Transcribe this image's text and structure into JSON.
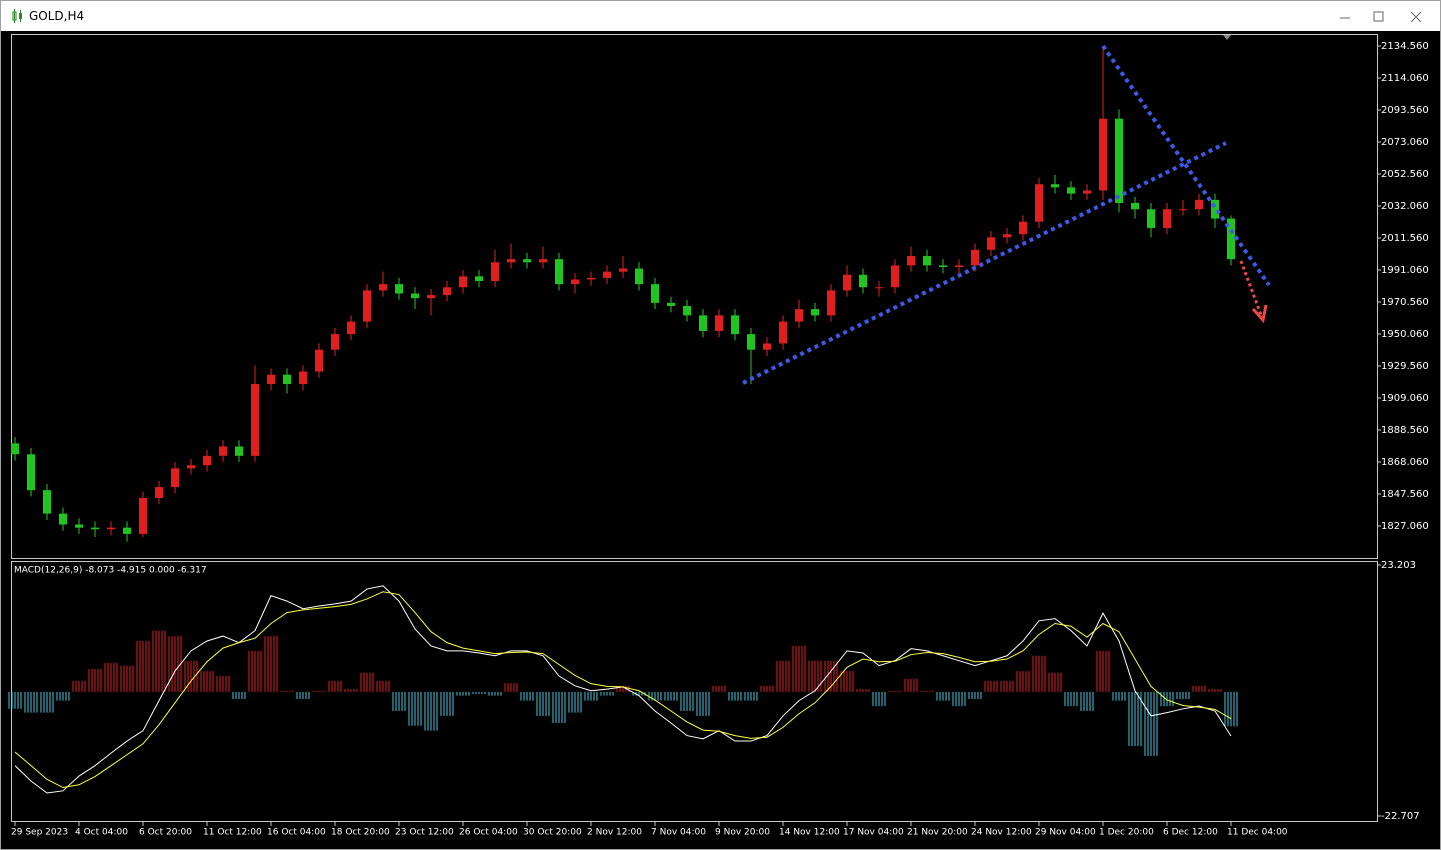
{
  "window": {
    "title": "GOLD,H4"
  },
  "chart_data": [
    {
      "type": "candlestick",
      "categories": [
        "29 Sep 2023",
        null,
        null,
        null,
        "4 Oct 04:00",
        null,
        null,
        null,
        "6 Oct 20:00",
        null,
        null,
        null,
        "11 Oct 12:00",
        null,
        null,
        null,
        "16 Oct 04:00",
        null,
        null,
        null,
        "18 Oct 20:00",
        null,
        null,
        null,
        "23 Oct 12:00",
        null,
        null,
        null,
        "26 Oct 04:00",
        null,
        null,
        null,
        "30 Oct 20:00",
        null,
        null,
        null,
        "2 Nov 12:00",
        null,
        null,
        null,
        "7 Nov 04:00",
        null,
        null,
        null,
        "9 Nov 20:00",
        null,
        null,
        null,
        "14 Nov 12:00",
        null,
        null,
        null,
        "17 Nov 04:00",
        null,
        null,
        null,
        "21 Nov 20:00",
        null,
        null,
        null,
        "24 Nov 12:00",
        null,
        null,
        null,
        "29 Nov 04:00",
        null,
        null,
        null,
        "1 Dec 20:00",
        null,
        null,
        null,
        "6 Dec 12:00",
        null,
        null,
        null,
        "11 Dec 04:00"
      ],
      "open": [
        1880,
        1873,
        1850,
        1835,
        1828,
        1826,
        1825,
        1826,
        1822,
        1845,
        1852,
        1864,
        1866,
        1872,
        1878,
        1872,
        1918,
        1924,
        1918,
        1926,
        1940,
        1950,
        1958,
        1978,
        1982,
        1976,
        1973,
        1975,
        1980,
        1987,
        1984,
        1996,
        1998,
        1996,
        1998,
        1982,
        1985,
        1986,
        1990,
        1992,
        1982,
        1970,
        1968,
        1962,
        1952,
        1962,
        1950,
        1940,
        1944,
        1958,
        1966,
        1962,
        1978,
        1988,
        1980,
        1980,
        1994,
        2000,
        1994,
        1993,
        1994,
        2004,
        2012,
        2014,
        2022,
        2046,
        2044,
        2040,
        2042,
        2088,
        2034,
        2030,
        2018,
        2030,
        2030,
        2036,
        2024
      ],
      "high": [
        1884,
        1877,
        1854,
        1839,
        1832,
        1830,
        1830,
        1830,
        1849,
        1856,
        1868,
        1870,
        1876,
        1882,
        1882,
        1930,
        1928,
        1928,
        1930,
        1944,
        1954,
        1962,
        1982,
        1990,
        1986,
        1980,
        1979,
        1984,
        1991,
        1991,
        2004,
        2008,
        2002,
        2006,
        2002,
        1989,
        1990,
        1994,
        2000,
        1996,
        1986,
        1974,
        1972,
        1966,
        1966,
        1966,
        1954,
        1948,
        1962,
        1972,
        1970,
        1982,
        1994,
        1992,
        1984,
        1998,
        2006,
        2004,
        1998,
        1998,
        2008,
        2016,
        2018,
        2026,
        2050,
        2052,
        2048,
        2046,
        2134.56,
        2094,
        2038,
        2034,
        2034,
        2036,
        2040,
        2040,
        2026
      ],
      "low": [
        1869,
        1846,
        1831,
        1824,
        1822,
        1820,
        1821,
        1817,
        1820,
        1841,
        1848,
        1860,
        1862,
        1868,
        1868,
        1868,
        1914,
        1912,
        1914,
        1922,
        1936,
        1946,
        1954,
        1974,
        1972,
        1966,
        1962,
        1971,
        1976,
        1980,
        1980,
        1992,
        1992,
        1992,
        1978,
        1976,
        1981,
        1982,
        1986,
        1978,
        1966,
        1964,
        1958,
        1948,
        1948,
        1946,
        1918,
        1936,
        1940,
        1954,
        1958,
        1958,
        1974,
        1976,
        1974,
        1976,
        1990,
        1990,
        1989,
        1989,
        1990,
        2000,
        2008,
        2010,
        2018,
        2040,
        2036,
        2036,
        2036,
        2028,
        2024,
        2012,
        2014,
        2026,
        2026,
        2018,
        1994
      ],
      "close": [
        1873,
        1850,
        1835,
        1828,
        1826,
        1825,
        1826,
        1822,
        1845,
        1852,
        1864,
        1866,
        1872,
        1878,
        1872,
        1918,
        1924,
        1918,
        1926,
        1940,
        1950,
        1958,
        1978,
        1982,
        1976,
        1973,
        1975,
        1980,
        1987,
        1984,
        1996,
        1998,
        1996,
        1998,
        1982,
        1985,
        1986,
        1990,
        1992,
        1982,
        1970,
        1968,
        1962,
        1952,
        1962,
        1950,
        1940,
        1944,
        1958,
        1966,
        1962,
        1978,
        1988,
        1980,
        1980,
        1994,
        2000,
        1994,
        1993,
        1994,
        2004,
        2012,
        2014,
        2022,
        2046,
        2044,
        2040,
        2042,
        2088,
        2034,
        2030,
        2018,
        2030,
        2030,
        2036,
        2024,
        1998
      ],
      "up_color": "#e02020",
      "down_color": "#22c422",
      "ylim": [
        1806.56,
        2142.25
      ],
      "yticks": [
        {
          "value": 2134.56,
          "label": "2134.560"
        },
        {
          "value": 2114.06,
          "label": "2114.060"
        },
        {
          "value": 2093.56,
          "label": "2093.560"
        },
        {
          "value": 2073.06,
          "label": "2073.060"
        },
        {
          "value": 2052.56,
          "label": "2052.560"
        },
        {
          "value": 2032.06,
          "label": "2032.060"
        },
        {
          "value": 2011.56,
          "label": "2011.560"
        },
        {
          "value": 1991.06,
          "label": "1991.060"
        },
        {
          "value": 1970.56,
          "label": "1970.560"
        },
        {
          "value": 1950.06,
          "label": "1950.060"
        },
        {
          "value": 1929.56,
          "label": "1929.560"
        },
        {
          "value": 1909.06,
          "label": "1909.060"
        },
        {
          "value": 1888.56,
          "label": "1888.560"
        },
        {
          "value": 1868.06,
          "label": "1868.060"
        },
        {
          "value": 1847.56,
          "label": "1847.560"
        },
        {
          "value": 1827.06,
          "label": "1827.060"
        }
      ]
    },
    {
      "type": "macd",
      "label": "MACD(12,26,9) -8.073 -4.915 0.000 -6.317",
      "histogram": {
        "positive_color": "#e02020",
        "negative_color": "#3ec8dc",
        "values": [
          -3.1,
          -3.8,
          -3.8,
          -1.6,
          2.0,
          4.2,
          5.3,
          4.8,
          9.3,
          11.2,
          10.2,
          5.7,
          3.8,
          2.9,
          -1.3,
          7.5,
          10.2,
          0.2,
          -1.3,
          0.2,
          2.0,
          0.5,
          3.5,
          2.0,
          -3.5,
          -6.2,
          -7.1,
          -4.4,
          -0.7,
          -0.4,
          -0.7,
          1.6,
          -1.6,
          -4.4,
          -5.7,
          -3.8,
          -1.6,
          -0.7,
          1.1,
          -0.7,
          -1.6,
          -1.6,
          -3.5,
          -4.4,
          1.1,
          -1.6,
          -1.6,
          1.1,
          5.7,
          8.4,
          5.7,
          5.7,
          3.8,
          0.5,
          -2.6,
          0.2,
          2.4,
          0.2,
          -1.6,
          -2.6,
          -1.3,
          2.0,
          2.0,
          3.8,
          6.6,
          3.5,
          -2.6,
          -3.5,
          7.5,
          -1.6,
          -9.9,
          -11.7,
          -2.6,
          -1.3,
          1.1,
          0.5,
          -6.317
        ]
      },
      "lines": [
        {
          "color": "#ffffff",
          "values": [
            -13.5,
            -16.3,
            -18.5,
            -18.1,
            -15.4,
            -13.5,
            -11.2,
            -9.0,
            -7.1,
            -1.6,
            3.8,
            7.5,
            9.3,
            10.2,
            9.0,
            11.2,
            17.6,
            16.6,
            15.2,
            15.7,
            16.1,
            16.6,
            18.8,
            19.4,
            16.6,
            11.5,
            8.4,
            7.5,
            7.5,
            7.1,
            6.6,
            7.5,
            7.5,
            6.6,
            2.9,
            1.1,
            0.2,
            0.5,
            0.9,
            -0.7,
            -3.5,
            -5.7,
            -8.0,
            -8.6,
            -7.1,
            -9.0,
            -9.0,
            -8.0,
            -4.4,
            -1.6,
            0.2,
            3.8,
            7.5,
            7.1,
            4.8,
            5.7,
            7.9,
            7.5,
            6.6,
            5.7,
            4.8,
            5.7,
            6.6,
            9.3,
            13.0,
            13.4,
            11.2,
            8.4,
            14.4,
            9.3,
            0.2,
            -4.4,
            -3.8,
            -3.1,
            -2.6,
            -3.5,
            -8.073
          ]
        },
        {
          "color": "#ffff40",
          "values": [
            -11,
            -13.5,
            -16,
            -17.5,
            -17,
            -15.5,
            -13.5,
            -11.5,
            -9.5,
            -6,
            -2,
            2,
            5.5,
            8,
            9,
            9.8,
            12.5,
            14.5,
            15,
            15.3,
            15.6,
            16,
            17,
            18.3,
            17.8,
            14.5,
            11,
            9,
            8,
            7.5,
            7,
            7.2,
            7.3,
            7,
            5,
            3,
            1.5,
            1,
            0.9,
            0.2,
            -1.5,
            -3.5,
            -5.5,
            -7,
            -7.2,
            -8,
            -8.5,
            -8.3,
            -6.5,
            -4,
            -2,
            1,
            4.5,
            6,
            5.5,
            5.6,
            6.8,
            7.2,
            7,
            6.3,
            5.5,
            5.6,
            6,
            7.5,
            10.5,
            12.5,
            12,
            10,
            12.5,
            11,
            6,
            1,
            -1.5,
            -2.5,
            -2.8,
            -3.2,
            -4.915
          ]
        }
      ],
      "ylim": [
        -22.707,
        23.203
      ],
      "yticks": [
        23.203,
        -22.707
      ]
    }
  ]
}
